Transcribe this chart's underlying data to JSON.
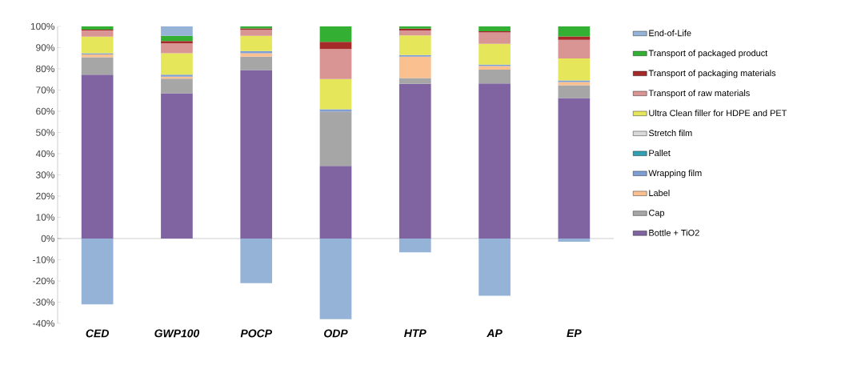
{
  "chart_data": {
    "type": "bar",
    "stacked": true,
    "legend": "right",
    "categories": [
      "CED",
      "GWP100",
      "POCP",
      "ODP",
      "HTP",
      "AP",
      "EP"
    ],
    "ylim": [
      -40,
      100
    ],
    "yticks": [
      {
        "value": -40,
        "label": "-40%"
      },
      {
        "value": -30,
        "label": "-30%"
      },
      {
        "value": -20,
        "label": "-20%"
      },
      {
        "value": -10,
        "label": "-10%"
      },
      {
        "value": 0,
        "label": "0%"
      },
      {
        "value": 10,
        "label": "10%"
      },
      {
        "value": 20,
        "label": "20%"
      },
      {
        "value": 30,
        "label": "30%"
      },
      {
        "value": 40,
        "label": "40%"
      },
      {
        "value": 50,
        "label": "50%"
      },
      {
        "value": 60,
        "label": "60%"
      },
      {
        "value": 70,
        "label": "70%"
      },
      {
        "value": 80,
        "label": "80%"
      },
      {
        "value": 90,
        "label": "90%"
      },
      {
        "value": 100,
        "label": "100%"
      }
    ],
    "series": [
      {
        "name": "Bottle + TiO2",
        "color": "#8064a2",
        "values": [
          77.3,
          68.5,
          79.4,
          34.2,
          72.9,
          73.1,
          66.2
        ]
      },
      {
        "name": "Cap",
        "color": "#a6a6a6",
        "values": [
          8.2,
          6.9,
          6.4,
          25.7,
          2.8,
          6.5,
          6.1
        ]
      },
      {
        "name": "Label",
        "color": "#fac090",
        "values": [
          1.3,
          0.9,
          1.6,
          0,
          10.1,
          1.7,
          1.5
        ]
      },
      {
        "name": "Wrapping film",
        "color": "#7f9fd4",
        "values": [
          0.6,
          1.0,
          1.0,
          1.0,
          0.7,
          0.7,
          0.7
        ]
      },
      {
        "name": "Pallet",
        "color": "#31a0b0",
        "values": [
          0,
          0,
          0,
          0,
          0,
          0,
          0
        ]
      },
      {
        "name": "Stretch film",
        "color": "#d9d9d9",
        "values": [
          0,
          0,
          0,
          0,
          0,
          0,
          0
        ]
      },
      {
        "name": "Ultra Clean filler for HDPE and PET",
        "color": "#e6e65a",
        "values": [
          7.8,
          10.1,
          7.2,
          14.3,
          9.3,
          9.8,
          10.4
        ]
      },
      {
        "name": "Transport of raw materials",
        "color": "#d99594",
        "values": [
          2.9,
          4.7,
          2.8,
          14.1,
          2.3,
          5.4,
          8.8
        ]
      },
      {
        "name": "Transport of packaging materials",
        "color": "#a52a2a",
        "values": [
          0.4,
          1.0,
          0.7,
          3.4,
          0.9,
          0.5,
          1.6
        ]
      },
      {
        "name": "Transport of packaged product",
        "color": "#33b033",
        "values": [
          1.5,
          2.5,
          0.9,
          7.3,
          1.0,
          2.3,
          4.7
        ]
      },
      {
        "name": "End-of-Life",
        "color": "#95b3d7",
        "values": [
          -31,
          4.4,
          -21,
          -38,
          -6.5,
          -27,
          -1.5
        ]
      }
    ]
  }
}
